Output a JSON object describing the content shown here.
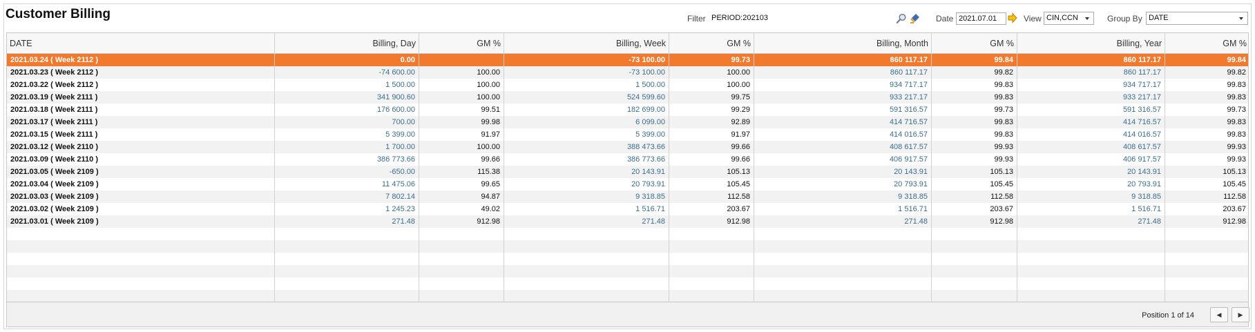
{
  "title": "Customer Billing",
  "filter": {
    "label": "Filter",
    "value": "PERIOD:202103"
  },
  "icons": {
    "search": "search-icon",
    "clear": "clear-filter-icon",
    "go": "arrow-right-icon"
  },
  "date": {
    "label": "Date",
    "value": "2021.07.01"
  },
  "view": {
    "label": "View",
    "value": "CIN,CCN"
  },
  "group_by": {
    "label": "Group By",
    "value": "DATE"
  },
  "columns": [
    "DATE",
    "Billing, Day",
    "GM %",
    "Billing, Week",
    "GM %",
    "Billing, Month",
    "GM %",
    "Billing, Year",
    "GM %"
  ],
  "rows": [
    [
      "2021.03.24 ( Week 2112 )",
      "0.00",
      "",
      "-73 100.00",
      "99.73",
      "860 117.17",
      "99.84",
      "860 117.17",
      "99.84"
    ],
    [
      "2021.03.23 ( Week 2112 )",
      "-74 600.00",
      "100.00",
      "-73 100.00",
      "100.00",
      "860 117.17",
      "99.82",
      "860 117.17",
      "99.82"
    ],
    [
      "2021.03.22 ( Week 2112 )",
      "1 500.00",
      "100.00",
      "1 500.00",
      "100.00",
      "934 717.17",
      "99.83",
      "934 717.17",
      "99.83"
    ],
    [
      "2021.03.19 ( Week 2111 )",
      "341 900.60",
      "100.00",
      "524 599.60",
      "99.75",
      "933 217.17",
      "99.83",
      "933 217.17",
      "99.83"
    ],
    [
      "2021.03.18 ( Week 2111 )",
      "176 600.00",
      "99.51",
      "182 699.00",
      "99.29",
      "591 316.57",
      "99.73",
      "591 316.57",
      "99.73"
    ],
    [
      "2021.03.17 ( Week 2111 )",
      "700.00",
      "99.98",
      "6 099.00",
      "92.89",
      "414 716.57",
      "99.83",
      "414 716.57",
      "99.83"
    ],
    [
      "2021.03.15 ( Week 2111 )",
      "5 399.00",
      "91.97",
      "5 399.00",
      "91.97",
      "414 016.57",
      "99.83",
      "414 016.57",
      "99.83"
    ],
    [
      "2021.03.12 ( Week 2110 )",
      "1 700.00",
      "100.00",
      "388 473.66",
      "99.66",
      "408 617.57",
      "99.93",
      "408 617.57",
      "99.93"
    ],
    [
      "2021.03.09 ( Week 2110 )",
      "386 773.66",
      "99.66",
      "386 773.66",
      "99.66",
      "406 917.57",
      "99.93",
      "406 917.57",
      "99.93"
    ],
    [
      "2021.03.05 ( Week 2109 )",
      "-650.00",
      "115.38",
      "20 143.91",
      "105.13",
      "20 143.91",
      "105.13",
      "20 143.91",
      "105.13"
    ],
    [
      "2021.03.04 ( Week 2109 )",
      "11 475.06",
      "99.65",
      "20 793.91",
      "105.45",
      "20 793.91",
      "105.45",
      "20 793.91",
      "105.45"
    ],
    [
      "2021.03.03 ( Week 2109 )",
      "7 802.14",
      "94.87",
      "9 318.85",
      "112.58",
      "9 318.85",
      "112.58",
      "9 318.85",
      "112.58"
    ],
    [
      "2021.03.02 ( Week 2109 )",
      "1 245.23",
      "49.02",
      "1 516.71",
      "203.67",
      "1 516.71",
      "203.67",
      "1 516.71",
      "203.67"
    ],
    [
      "2021.03.01 ( Week 2109 )",
      "271.48",
      "912.98",
      "271.48",
      "912.98",
      "271.48",
      "912.98",
      "271.48",
      "912.98"
    ]
  ],
  "selected_row": 0,
  "footer": {
    "position_text": "Position 1 of 14"
  },
  "colors": {
    "selection": "#f27a2e",
    "link": "#3a6e8f"
  }
}
